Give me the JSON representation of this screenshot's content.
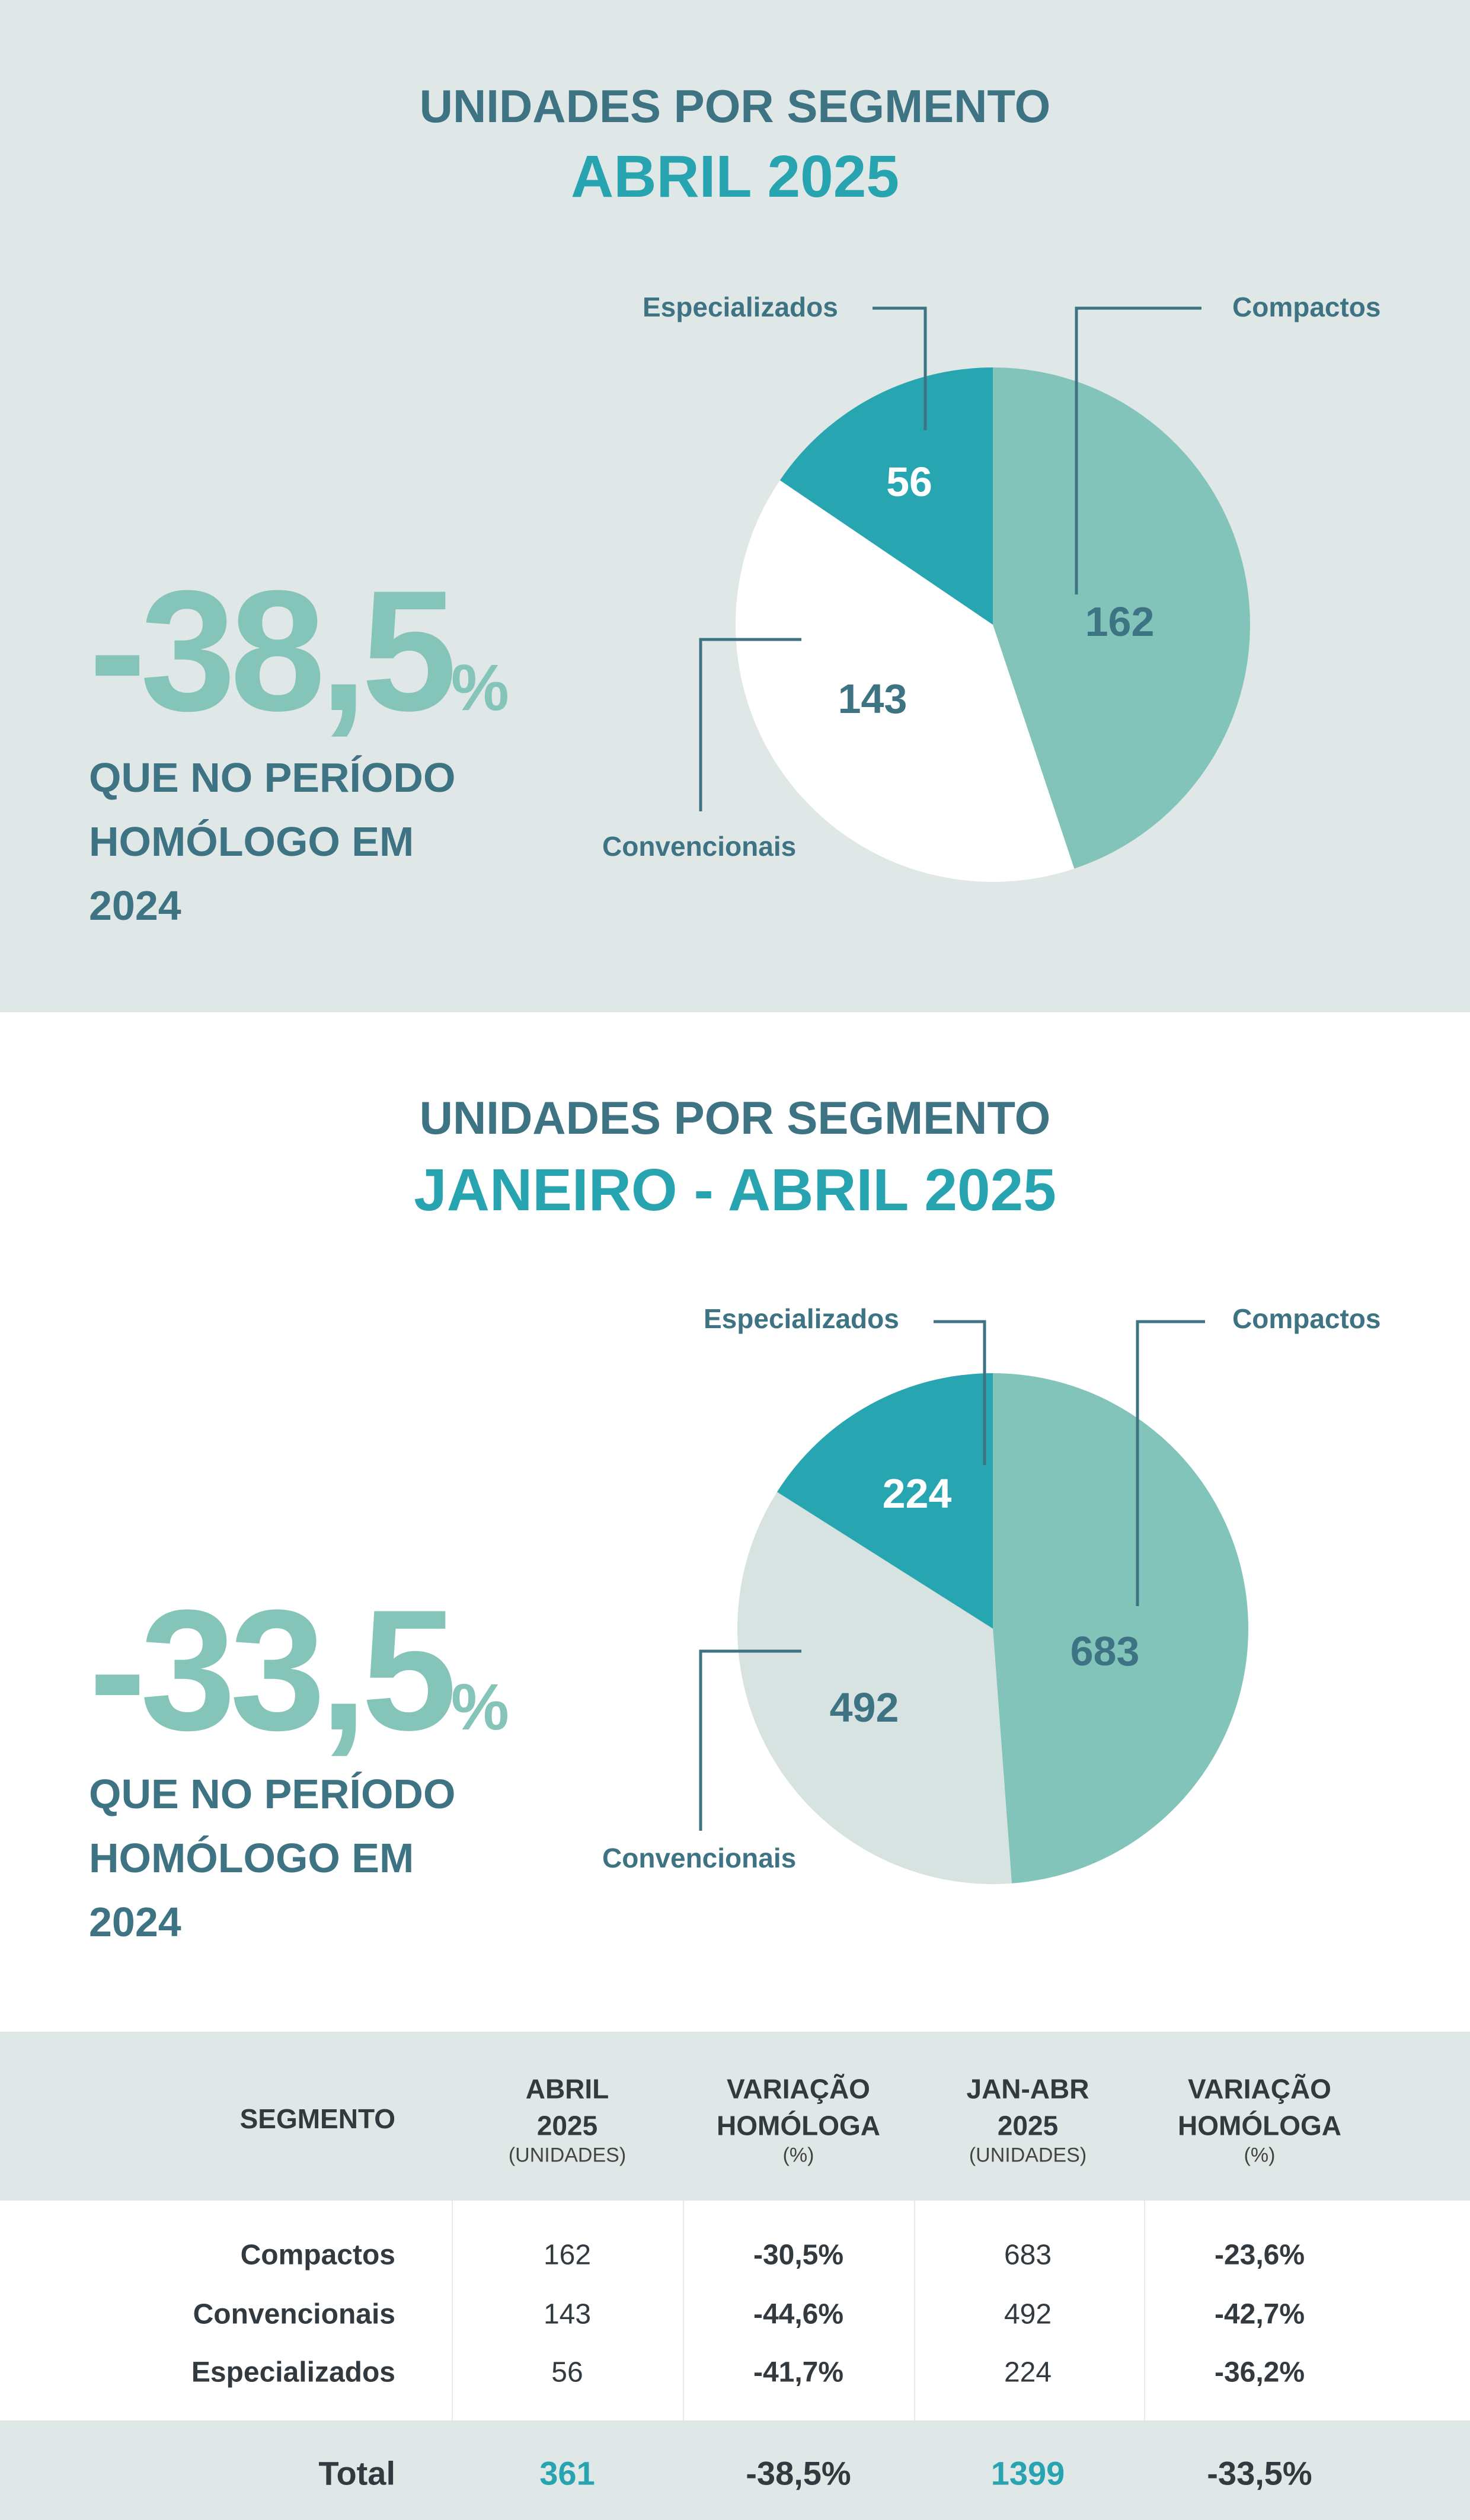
{
  "colors": {
    "compactos": "#82c4b9",
    "convencionais_1": "#ffffff",
    "convencionais_2": "#d7e3e1",
    "especializados": "#27a5b0",
    "text": "#3e7384",
    "accent": "#27a4b0"
  },
  "section1": {
    "title": "UNIDADES POR SEGMENTO",
    "period": "ABRIL 2025",
    "variation": "-38,5",
    "pct": "%",
    "sub": [
      "QUE NO PERÍODO",
      "HOMÓLOGO EM",
      "2024"
    ]
  },
  "section2": {
    "title": "UNIDADES POR SEGMENTO",
    "period": "JANEIRO - ABRIL 2025",
    "variation": "-33,5",
    "pct": "%",
    "sub": [
      "QUE NO PERÍODO",
      "HOMÓLOGO EM",
      "2024"
    ]
  },
  "chart_data": [
    {
      "type": "pie",
      "title": "UNIDADES POR SEGMENTO ABRIL 2025",
      "labels": [
        "Compactos",
        "Convencionais",
        "Especializados"
      ],
      "values": [
        162,
        143,
        56
      ],
      "value_labels": [
        "162",
        "143",
        "56"
      ]
    },
    {
      "type": "pie",
      "title": "UNIDADES POR SEGMENTO JANEIRO - ABRIL 2025",
      "labels": [
        "Compactos",
        "Convencionais",
        "Especializados"
      ],
      "values": [
        683,
        492,
        224
      ],
      "value_labels": [
        "683",
        "492",
        "224"
      ]
    }
  ],
  "table": {
    "headers": [
      {
        "l1": "SEGMENTO"
      },
      {
        "l1": "ABRIL",
        "l2": "2025",
        "l3": "(UNIDADES)"
      },
      {
        "l1": "VARIAÇÃO",
        "l2": "HOMÓLOGA",
        "l3": "(%)"
      },
      {
        "l1": "JAN-ABR",
        "l2": "2025",
        "l3": "(UNIDADES)"
      },
      {
        "l1": "VARIAÇÃO",
        "l2": "HOMÓLOGA",
        "l3": "(%)"
      }
    ],
    "rows": [
      [
        "Compactos",
        "162",
        "-30,5%",
        "683",
        "-23,6%"
      ],
      [
        "Convencionais",
        "143",
        "-44,6%",
        "492",
        "-42,7%"
      ],
      [
        "Especializados",
        "56",
        "-41,7%",
        "224",
        "-36,2%"
      ]
    ],
    "total": [
      "Total",
      "361",
      "-38,5%",
      "1399",
      "-33,5%"
    ]
  }
}
